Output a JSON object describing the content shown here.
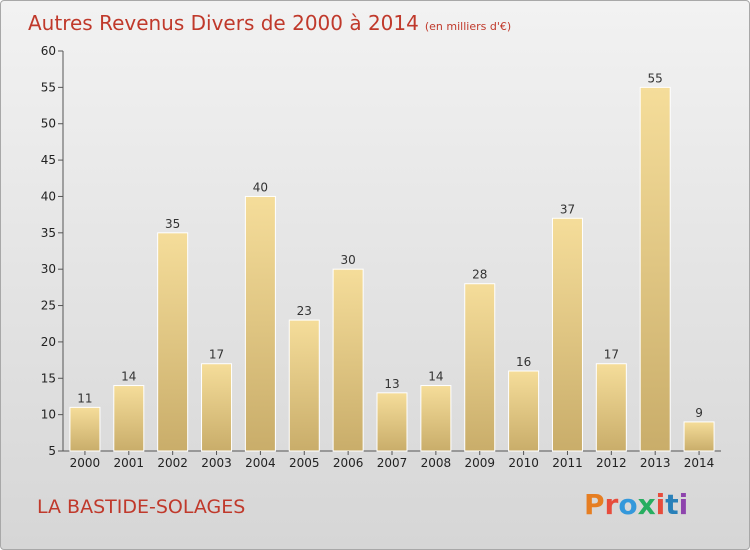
{
  "header": {
    "title": "Autres Revenus Divers de 2000 à 2014",
    "unit_note": "(en milliers d'€)"
  },
  "footer": {
    "place": "LA BASTIDE-SOLAGES",
    "logo": [
      "P",
      "r",
      "o",
      "x",
      "i",
      "t",
      "i"
    ]
  },
  "colors": {
    "title": "#c0392b",
    "bar_light": "#f5dd9a",
    "bar_dark": "#c9ad6a",
    "logo": [
      "#e67e22",
      "#e74c3c",
      "#3498db",
      "#27ae60",
      "#e74c3c",
      "#2980b9",
      "#8e44ad"
    ]
  },
  "chart_data": {
    "type": "bar",
    "categories": [
      "2000",
      "2001",
      "2002",
      "2003",
      "2004",
      "2005",
      "2006",
      "2007",
      "2008",
      "2009",
      "2010",
      "2011",
      "2012",
      "2013",
      "2014"
    ],
    "values": [
      11,
      14,
      35,
      17,
      40,
      23,
      30,
      13,
      14,
      28,
      16,
      37,
      17,
      55,
      9
    ],
    "title": "Autres Revenus Divers de 2000 à 2014",
    "xlabel": "",
    "ylabel": "",
    "ylim": [
      5,
      60
    ],
    "yticks": [
      5,
      10,
      15,
      20,
      25,
      30,
      35,
      40,
      45,
      50,
      55,
      60
    ],
    "grid": false
  }
}
